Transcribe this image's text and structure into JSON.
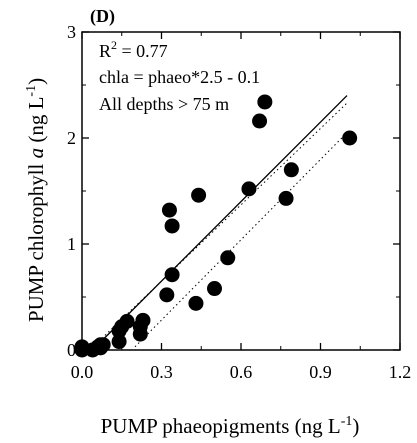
{
  "chart_data": {
    "type": "scatter",
    "panel_label": "(D)",
    "xlabel_main": "PUMP phaeopigments (ng L",
    "xlabel_sup": "-1",
    "xlabel_close": ")",
    "ylabel_pre": "PUMP chlorophyll ",
    "ylabel_italic": "a",
    "ylabel_post": " (ng L",
    "ylabel_sup": "-1",
    "ylabel_close": ")",
    "annotations": {
      "r2_base": "R",
      "r2_sup": "2",
      "r2_value": " = 0.77",
      "equation": "chla = phaeo*2.5 - 0.1",
      "depth_note": "All depths > 75 m"
    },
    "xlim": [
      0,
      1.2
    ],
    "ylim": [
      0,
      3
    ],
    "xticks": [
      0.0,
      0.3,
      0.6,
      0.9,
      1.2
    ],
    "xtick_labels": [
      "0.0",
      "0.3",
      "0.6",
      "0.9",
      "1.2"
    ],
    "yticks": [
      0,
      1,
      2,
      3
    ],
    "ytick_labels": [
      "0",
      "1",
      "2",
      "3"
    ],
    "regression": {
      "slope": 2.5,
      "intercept": -0.1,
      "x_range": [
        0.0,
        1.0
      ]
    },
    "confidence_band": {
      "upper": [
        [
          0.05,
          0.05
        ],
        [
          1.0,
          2.33
        ]
      ],
      "lower": [
        [
          0.2,
          0.03
        ],
        [
          1.0,
          2.05
        ]
      ]
    },
    "points": [
      [
        0.0,
        0.03
      ],
      [
        0.0,
        0.0
      ],
      [
        0.04,
        0.0
      ],
      [
        0.06,
        0.03
      ],
      [
        0.07,
        0.05
      ],
      [
        0.08,
        0.05
      ],
      [
        0.07,
        0.02
      ],
      [
        0.14,
        0.08
      ],
      [
        0.14,
        0.18
      ],
      [
        0.15,
        0.22
      ],
      [
        0.17,
        0.27
      ],
      [
        0.22,
        0.15
      ],
      [
        0.22,
        0.22
      ],
      [
        0.23,
        0.28
      ],
      [
        0.32,
        0.52
      ],
      [
        0.33,
        1.32
      ],
      [
        0.34,
        0.71
      ],
      [
        0.34,
        1.17
      ],
      [
        0.43,
        0.44
      ],
      [
        0.44,
        1.46
      ],
      [
        0.5,
        0.58
      ],
      [
        0.55,
        0.87
      ],
      [
        0.63,
        1.52
      ],
      [
        0.67,
        2.16
      ],
      [
        0.69,
        2.34
      ],
      [
        0.77,
        1.43
      ],
      [
        0.79,
        1.7
      ],
      [
        1.01,
        2.0
      ]
    ],
    "colors": {
      "points": "#000000",
      "axes": "#000000",
      "background": "#ffffff"
    },
    "grid": false,
    "legend": "none"
  }
}
